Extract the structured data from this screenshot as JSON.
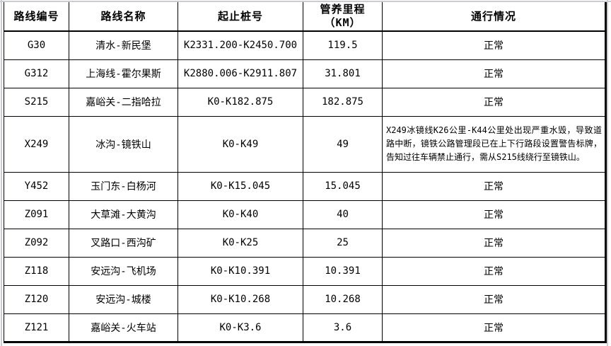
{
  "table": {
    "columns": [
      {
        "id": "code",
        "label": "路线编号"
      },
      {
        "id": "name",
        "label": "路线名称"
      },
      {
        "id": "stakes",
        "label": "起止桩号"
      },
      {
        "id": "mileage",
        "label": "管养里程\n（KM）"
      },
      {
        "id": "status",
        "label": "通行情况"
      }
    ],
    "rows": [
      {
        "code": "G30",
        "name": "清水-新民堡",
        "stakes": "K2331.200-K2450.700",
        "mileage": "119.5",
        "status": "正常",
        "is_remark": false
      },
      {
        "code": "G312",
        "name": "上海线-霍尔果斯",
        "stakes": "K2880.006-K2911.807",
        "mileage": "31.801",
        "status": "正常",
        "is_remark": false
      },
      {
        "code": "S215",
        "name": "嘉峪关-二指哈拉",
        "stakes": "K0-K182.875",
        "mileage": "182.875",
        "status": "正常",
        "is_remark": false
      },
      {
        "code": "X249",
        "name": "冰沟-镜铁山",
        "stakes": "K0-K49",
        "mileage": "49",
        "status": "X249冰镜线K26公里-K44公里处出现严重水毁，导致道路中断，镜铁公路管理段已在上下行路段设置警告标牌，告知过往车辆禁止通行，需从S215线绕行至镜铁山。",
        "is_remark": true
      },
      {
        "code": "Y452",
        "name": "玉门东-白杨河",
        "stakes": "K0-K15.045",
        "mileage": "15.045",
        "status": "正常",
        "is_remark": false
      },
      {
        "code": "Z091",
        "name": "大草滩-大黄沟",
        "stakes": "K0-K40",
        "mileage": "40",
        "status": "正常",
        "is_remark": false
      },
      {
        "code": "Z092",
        "name": "叉路口-西沟矿",
        "stakes": "K0-K25",
        "mileage": "25",
        "status": "正常",
        "is_remark": false
      },
      {
        "code": "Z118",
        "name": "安远沟-飞机场",
        "stakes": "K0-K10.391",
        "mileage": "10.391",
        "status": "正常",
        "is_remark": false
      },
      {
        "code": "Z120",
        "name": "安远沟-城楼",
        "stakes": "K0-K10.268",
        "mileage": "10.268",
        "status": "正常",
        "is_remark": false
      },
      {
        "code": "Z121",
        "name": "嘉峪关-火车站",
        "stakes": "K0-K3.6",
        "mileage": "3.6",
        "status": "正常",
        "is_remark": false
      }
    ]
  },
  "colors": {
    "border": "#000000",
    "gridline": "#c9cdd2",
    "background": "#ffffff",
    "text": "#000000"
  }
}
